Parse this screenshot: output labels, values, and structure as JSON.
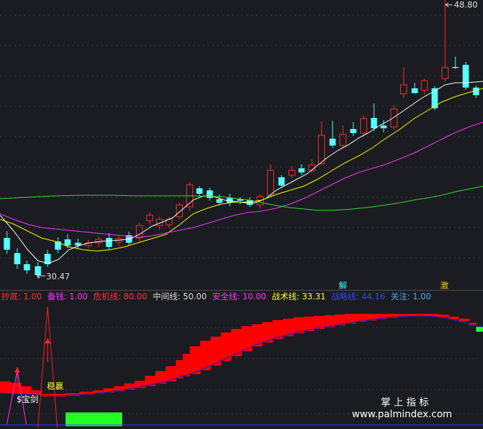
{
  "chart_data": [
    {
      "type": "candlestick",
      "title": "",
      "price_labels": {
        "high": "48.80",
        "low": "30.47"
      },
      "markers": [
        "解",
        "激"
      ],
      "colors": {
        "up": "#ff2b2b",
        "down": "#54ffff",
        "ma5": "#ffffff",
        "ma10": "#ffff00",
        "ma20": "#ff33ff",
        "ma60": "#33dd33"
      },
      "series": [
        {
          "name": "ma5",
          "color": "#ffffff"
        },
        {
          "name": "ma10",
          "color": "#ffff00"
        },
        {
          "name": "ma20",
          "color": "#ff33ff"
        },
        {
          "name": "ma60",
          "color": "#33dd33"
        }
      ]
    },
    {
      "type": "indicator",
      "legend": [
        {
          "label": "抄底:",
          "value": "1.00",
          "color": "#ff3333"
        },
        {
          "label": "备钱:",
          "value": "1.00",
          "color": "#ff33ff"
        },
        {
          "label": "危机线:",
          "value": "80.00",
          "color": "#ff3333"
        },
        {
          "label": "中间线:",
          "value": "50.00",
          "color": "#dddddd"
        },
        {
          "label": "安全线:",
          "value": "10.00",
          "color": "#ff33ff"
        },
        {
          "label": "战术线:",
          "value": "33.31",
          "color": "#ffff33"
        },
        {
          "label": "战略线:",
          "value": "44.16",
          "color": "#3344ff"
        },
        {
          "label": "关注:",
          "value": "1.00",
          "color": "#44aaff"
        }
      ],
      "annotations": {
        "buy_label": "稳赢",
        "tag_label": "$宝剑"
      },
      "colors": {
        "up_band": "#ff0000",
        "down_band": "#22ff22",
        "strategy": "#1a22cc"
      }
    }
  ],
  "watermark": {
    "line1": "掌 上 指 标",
    "line2": "www.palmindex.com"
  }
}
